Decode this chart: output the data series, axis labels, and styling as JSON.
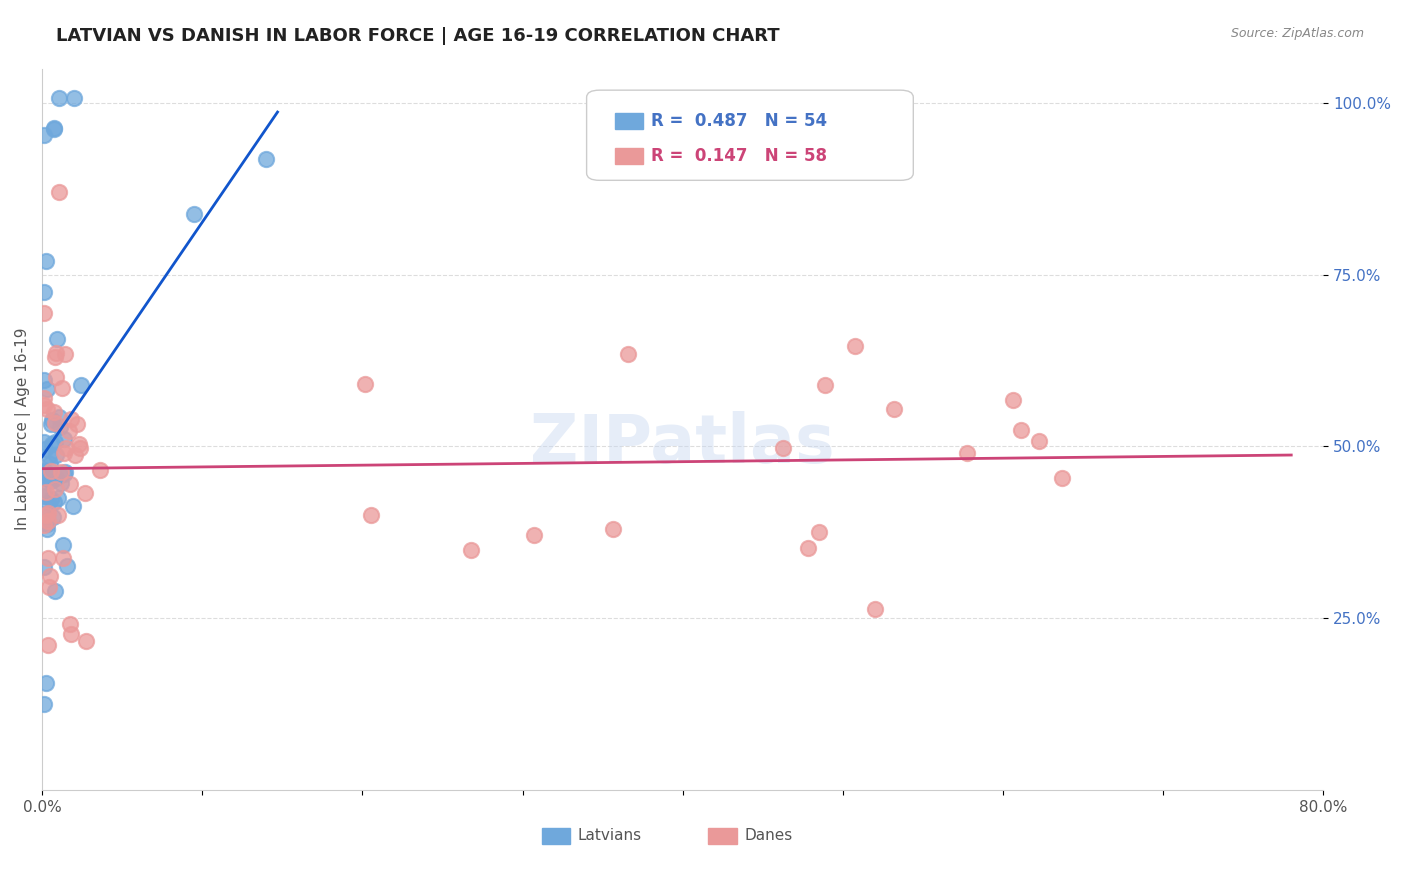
{
  "title": "LATVIAN VS DANISH IN LABOR FORCE | AGE 16-19 CORRELATION CHART",
  "source": "Source: ZipAtlas.com",
  "ylabel": "In Labor Force | Age 16-19",
  "xlim": [
    0.0,
    0.8
  ],
  "ylim": [
    0.0,
    1.05
  ],
  "latvian_color": "#6fa8dc",
  "danish_color": "#ea9999",
  "trend_latvian_color": "#1155cc",
  "trend_danish_color": "#cc4477",
  "legend_R_latvian": "0.487",
  "legend_N_latvian": "54",
  "legend_R_danish": "0.147",
  "legend_N_danish": "58",
  "watermark": "ZIPatlas",
  "background_color": "#ffffff",
  "grid_color": "#dddddd"
}
